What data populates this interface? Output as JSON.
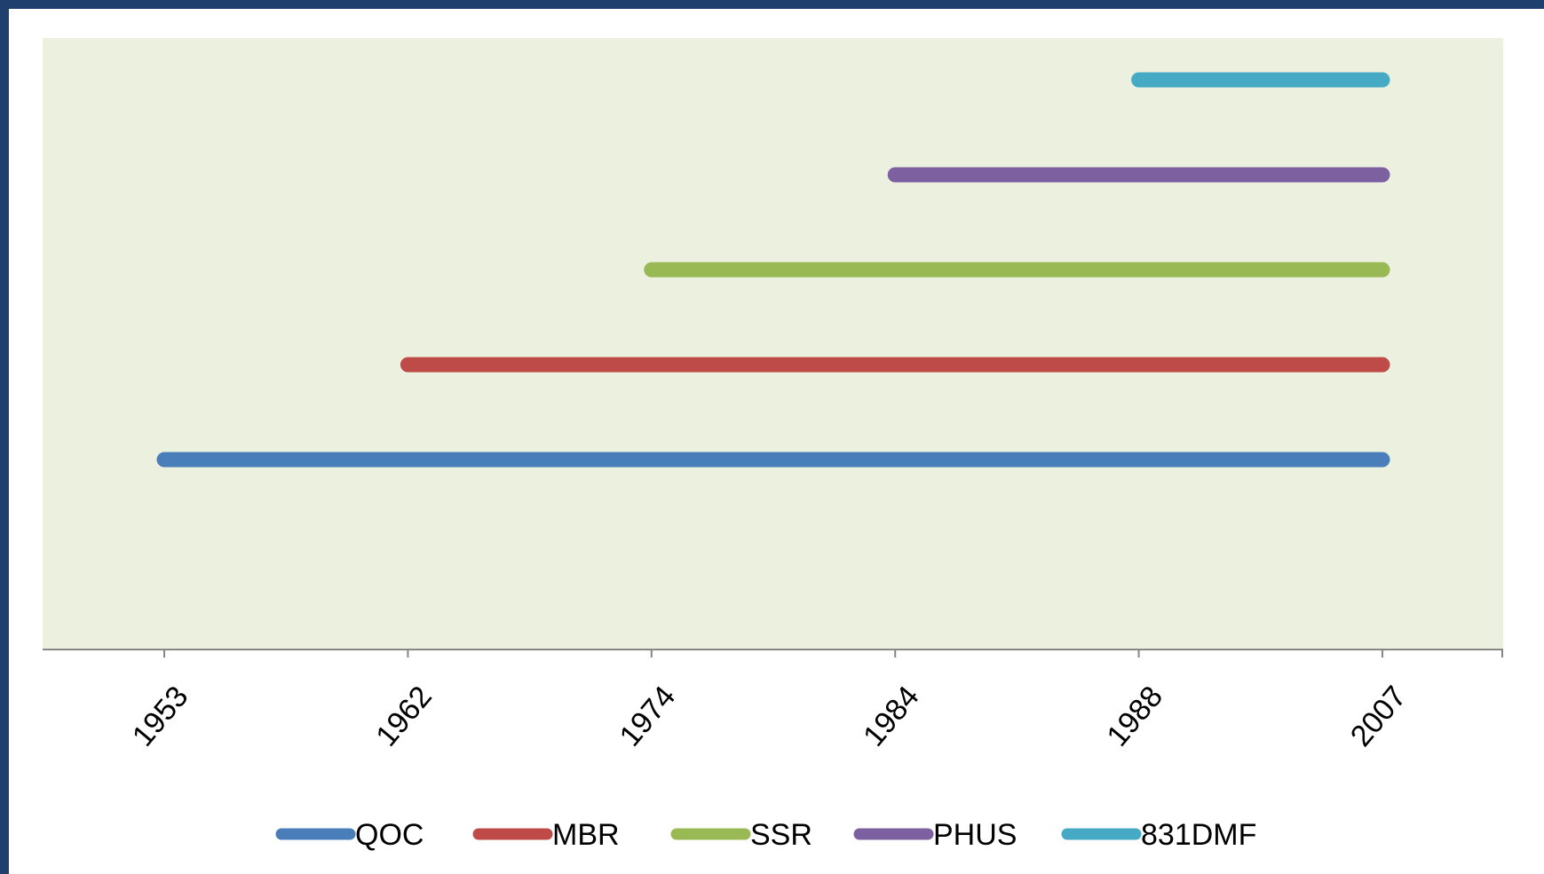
{
  "chart_data": {
    "type": "line",
    "title": "",
    "xlabel": "",
    "ylabel": "",
    "categories": [
      "1953",
      "1962",
      "1974",
      "1984",
      "1988",
      "2007"
    ],
    "series": [
      {
        "name": "QOC",
        "color": "#4a7ebb",
        "start": "1953",
        "end": "2007",
        "level": 1
      },
      {
        "name": "MBR",
        "color": "#be4b48",
        "start": "1962",
        "end": "2007",
        "level": 2
      },
      {
        "name": "SSR",
        "color": "#98b954",
        "start": "1974",
        "end": "2007",
        "level": 3
      },
      {
        "name": "PHUS",
        "color": "#7d60a0",
        "start": "1984",
        "end": "2007",
        "level": 4
      },
      {
        "name": "831DMF",
        "color": "#46aac5",
        "start": "1988",
        "end": "2007",
        "level": 5
      }
    ],
    "grid": false,
    "legend": "bottom",
    "plot_background": "#ebf1de"
  }
}
